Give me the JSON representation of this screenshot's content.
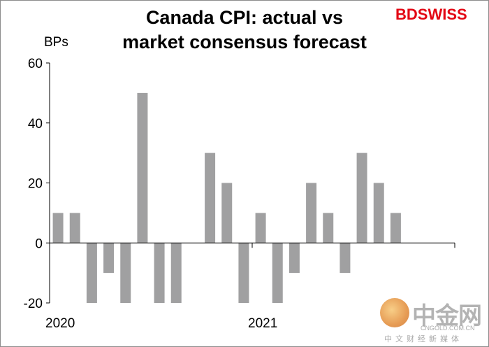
{
  "chart_data": {
    "type": "bar",
    "title": "Canada CPI: actual vs market consensus forecast",
    "title_lines": [
      "Canada CPI: actual vs",
      "market consensus forecast"
    ],
    "ylabel": "BPs",
    "xlabel": "",
    "ylim": [
      -20,
      60
    ],
    "yticks": [
      -20,
      0,
      20,
      40,
      60
    ],
    "year_labels": [
      {
        "label": "2020",
        "start_index": 0
      },
      {
        "label": "2021",
        "start_index": 12
      }
    ],
    "num_slots": 24,
    "values": [
      10,
      10,
      -20,
      -10,
      -20,
      50,
      -20,
      -20,
      null,
      30,
      20,
      -20,
      10,
      -20,
      -10,
      20,
      10,
      -10,
      30,
      20,
      10
    ],
    "bar_color": "#a0a0a1",
    "grid": false,
    "legend": "none"
  },
  "branding": {
    "logo": "BDSWISS",
    "logo_color": "#e30613"
  },
  "watermark": {
    "name": "中金网",
    "domain": "CNGOLD.COM.CN",
    "slogan": "中文财经新媒体"
  }
}
